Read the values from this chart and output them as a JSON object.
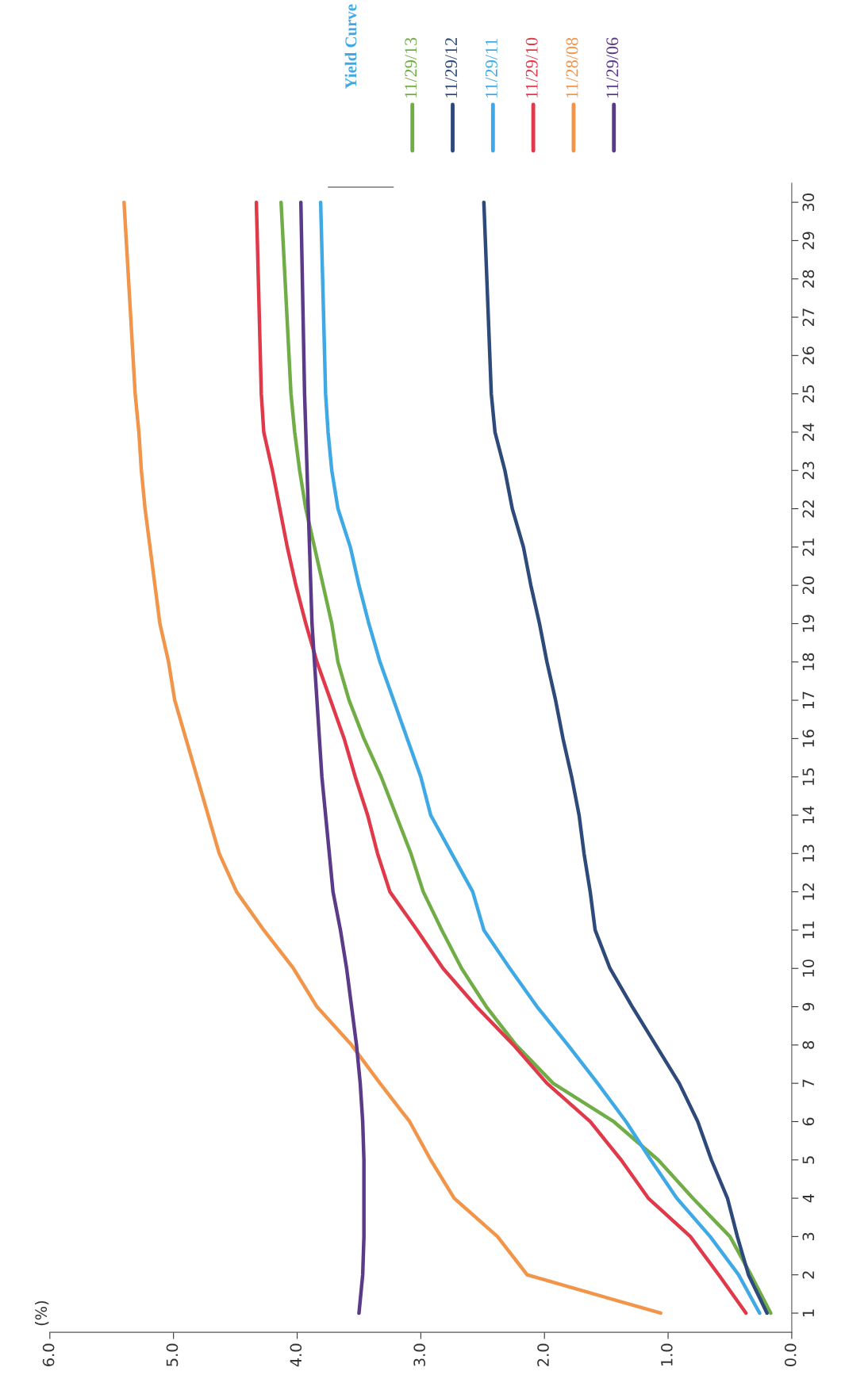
{
  "chart_data": {
    "type": "line",
    "ylabel": "(%)",
    "legend_title": "Yield Curve",
    "legend": "top right",
    "grid": false,
    "x": [
      1,
      2,
      3,
      4,
      5,
      6,
      7,
      8,
      9,
      10,
      11,
      12,
      13,
      14,
      15,
      16,
      17,
      18,
      19,
      20,
      21,
      22,
      23,
      24,
      25,
      30
    ],
    "orientation": "horizontal",
    "ylim": [
      0.5,
      30.5
    ],
    "yticks": [
      1,
      2,
      3,
      4,
      5,
      6,
      7,
      8,
      9,
      10,
      11,
      12,
      13,
      14,
      15,
      16,
      17,
      18,
      19,
      20,
      21,
      22,
      23,
      24,
      25,
      26,
      27,
      28,
      29,
      30
    ],
    "xlim": [
      6,
      0
    ],
    "xticks": [
      {
        "value": 0,
        "label": "0.0"
      },
      {
        "value": 1,
        "label": "1.0"
      },
      {
        "value": 2,
        "label": "2.0"
      },
      {
        "value": 3,
        "label": "3.0"
      },
      {
        "value": 4,
        "label": "4.0"
      },
      {
        "value": 5,
        "label": "5.0"
      },
      {
        "value": 6,
        "label": "6.0"
      }
    ],
    "series": [
      {
        "name": "11/29/13",
        "color": "#70ad47",
        "values": [
          0.17,
          0.33,
          0.5,
          0.8,
          1.08,
          1.44,
          1.93,
          2.23,
          2.47,
          2.67,
          2.83,
          2.98,
          3.08,
          3.2,
          3.32,
          3.46,
          3.58,
          3.67,
          3.72,
          3.79,
          3.86,
          3.93,
          3.98,
          4.02,
          4.05,
          4.13
        ]
      },
      {
        "name": "11/29/12",
        "color": "#2e4a7a",
        "values": [
          0.2,
          0.35,
          0.44,
          0.52,
          0.65,
          0.76,
          0.91,
          1.1,
          1.29,
          1.47,
          1.59,
          1.63,
          1.68,
          1.72,
          1.78,
          1.85,
          1.91,
          1.98,
          2.04,
          2.11,
          2.17,
          2.26,
          2.32,
          2.4,
          2.43,
          2.49
        ]
      },
      {
        "name": "11/29/11",
        "color": "#3fa9e6",
        "values": [
          0.26,
          0.43,
          0.66,
          0.93,
          1.14,
          1.34,
          1.57,
          1.81,
          2.06,
          2.28,
          2.49,
          2.58,
          2.75,
          2.92,
          3.0,
          3.11,
          3.22,
          3.33,
          3.42,
          3.5,
          3.57,
          3.67,
          3.72,
          3.75,
          3.77,
          3.81
        ]
      },
      {
        "name": "11/29/10",
        "color": "#e0394a",
        "values": [
          0.37,
          0.59,
          0.82,
          1.16,
          1.38,
          1.63,
          1.98,
          2.25,
          2.55,
          2.82,
          3.03,
          3.25,
          3.35,
          3.43,
          3.53,
          3.62,
          3.73,
          3.84,
          3.93,
          4.01,
          4.08,
          4.14,
          4.2,
          4.27,
          4.29,
          4.33
        ]
      },
      {
        "name": "11/28/08",
        "color": "#f0954a",
        "values": [
          1.06,
          2.14,
          2.38,
          2.73,
          2.92,
          3.09,
          3.33,
          3.56,
          3.84,
          4.03,
          4.27,
          4.49,
          4.63,
          4.72,
          4.81,
          4.9,
          4.99,
          5.04,
          5.11,
          5.15,
          5.19,
          5.23,
          5.26,
          5.28,
          5.31,
          5.4
        ]
      },
      {
        "name": "11/29/06",
        "color": "#5b3a8a",
        "values": [
          3.5,
          3.47,
          3.46,
          3.46,
          3.46,
          3.47,
          3.49,
          3.52,
          3.56,
          3.6,
          3.65,
          3.71,
          3.74,
          3.77,
          3.8,
          3.82,
          3.84,
          3.86,
          3.88,
          3.89,
          3.9,
          3.91,
          3.92,
          3.93,
          3.94,
          3.97
        ]
      }
    ]
  }
}
